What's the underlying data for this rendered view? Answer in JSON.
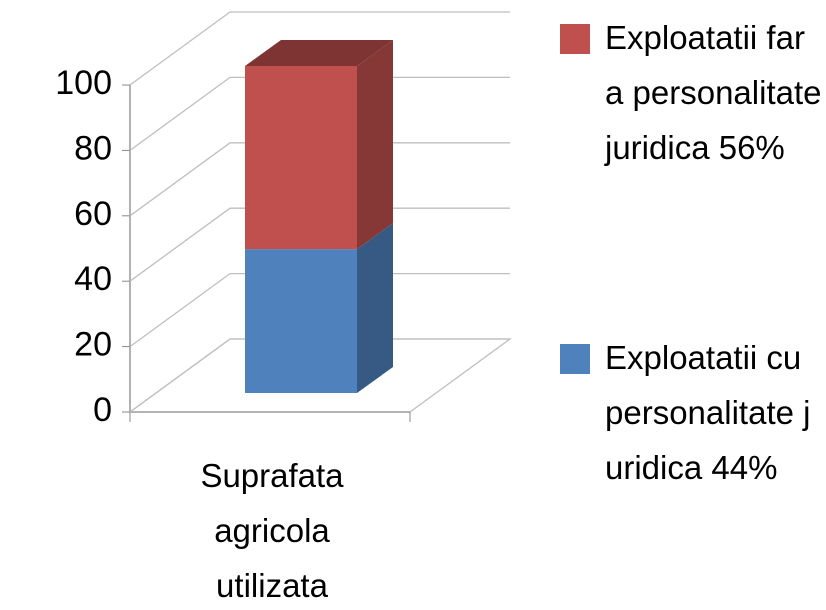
{
  "chart_data": {
    "type": "bar3d_stacked",
    "categories": [
      "Suprafata agricola utilizata"
    ],
    "series": [
      {
        "name": "Exploatatii cu personalitate juridica 44%",
        "color": "#4f81bd",
        "values": [
          44
        ]
      },
      {
        "name": "Exploatatii fara personalitate juridica 56%",
        "color": "#c0504d",
        "values": [
          56
        ]
      }
    ],
    "ylim": [
      0,
      100
    ],
    "yticks": [
      0,
      20,
      40,
      60,
      80,
      100
    ],
    "grid": true,
    "legend": "right"
  }
}
